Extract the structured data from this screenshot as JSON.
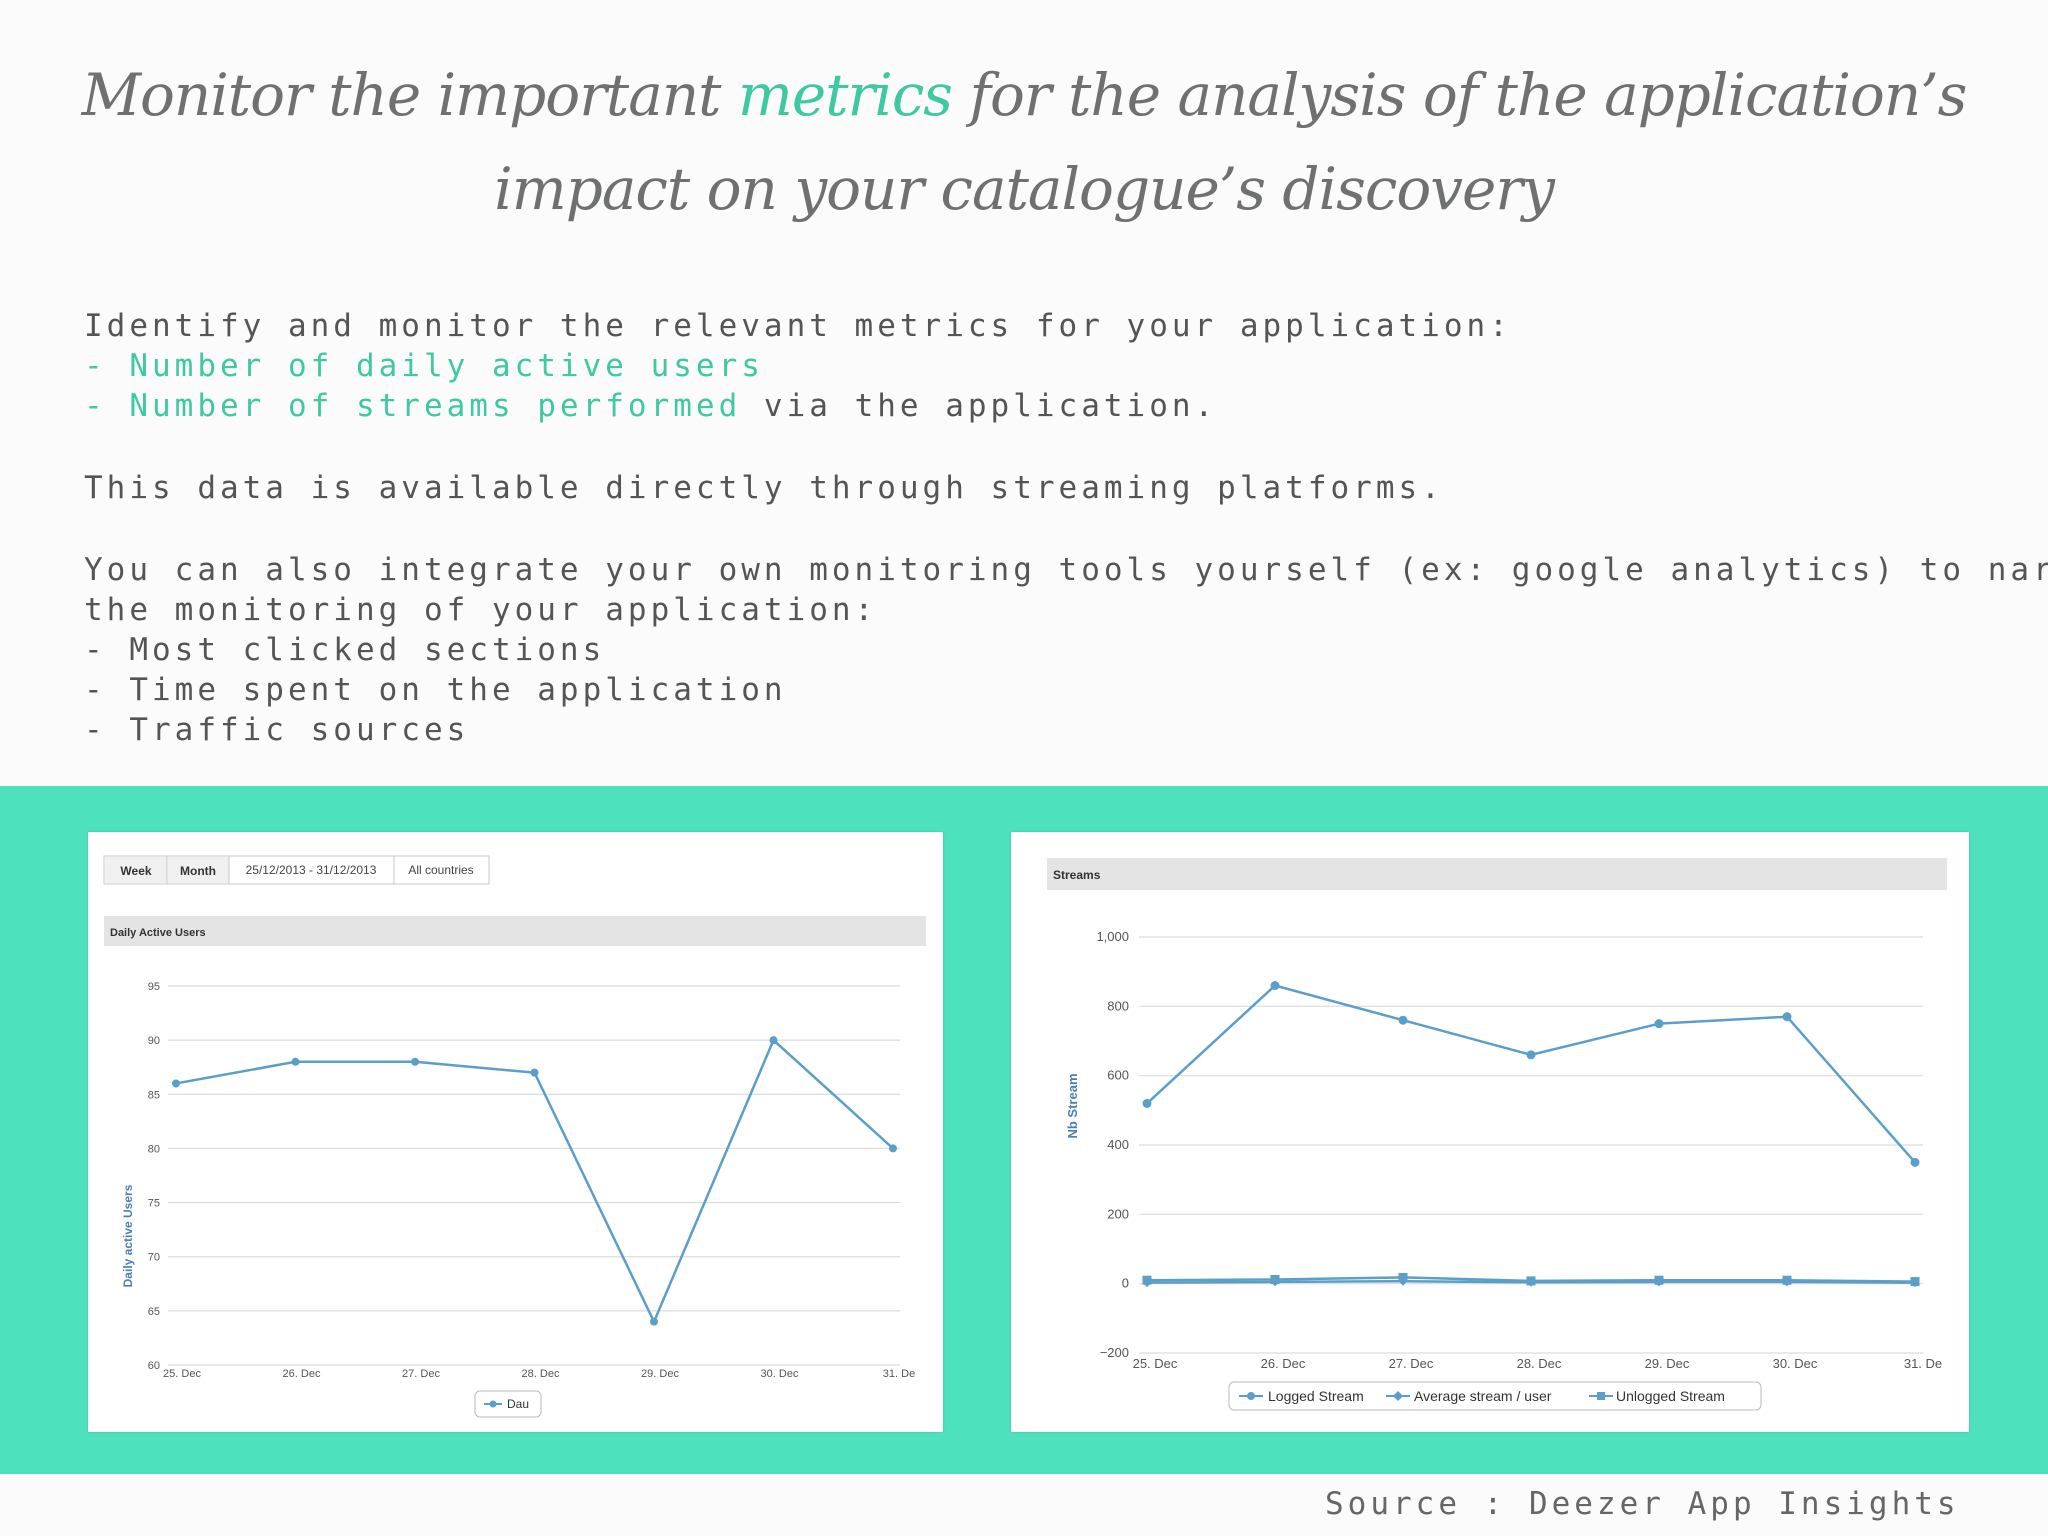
{
  "heading": {
    "before": "Monitor the important ",
    "accent": "metrics",
    "after": " for the analysis of the application’s impact on your catalogue’s discovery"
  },
  "body": {
    "intro": "Identify and monitor the relevant metrics for your application:",
    "metric1": "- Number of daily active users",
    "metric2": "- Number of streams performed",
    "metric2_suffix": " via the application.",
    "availability": "This data is available directly through streaming platforms.",
    "integrate_line1": "You can also integrate your own monitoring tools yourself (ex: google analytics) to narrow",
    "integrate_line2": "the monitoring of your application:",
    "item1": "- Most clicked sections",
    "item2": "- Time spent on the application",
    "item3": "- Traffic sources"
  },
  "source": "Source : Deezer App Insights",
  "colors": {
    "accent": "#3ec9a1",
    "band": "#4ee1be",
    "series": "#5b9ec9"
  },
  "toolbar": {
    "week": "Week",
    "month": "Month",
    "date_range": "25/12/2013 - 31/12/2013",
    "region": "All countries"
  },
  "chart_data": [
    {
      "type": "line",
      "title": "Daily Active Users",
      "ylabel": "Daily active Users",
      "xlabel": "",
      "categories": [
        "25. Dec",
        "26. Dec",
        "27. Dec",
        "28. Dec",
        "29. Dec",
        "30. Dec",
        "31. De"
      ],
      "yticks": [
        60,
        65,
        70,
        75,
        80,
        85,
        90,
        95
      ],
      "ylim": [
        60,
        95
      ],
      "series": [
        {
          "name": "Dau",
          "values": [
            86,
            88,
            88,
            87,
            64,
            90,
            80
          ]
        }
      ],
      "legend": "bottom",
      "grid": true
    },
    {
      "type": "line",
      "title": "Streams",
      "ylabel": "Nb Stream",
      "xlabel": "",
      "categories": [
        "25. Dec",
        "26. Dec",
        "27. Dec",
        "28. Dec",
        "29. Dec",
        "30. Dec",
        "31. De"
      ],
      "yticks": [
        -200,
        0,
        200,
        400,
        600,
        800,
        1000
      ],
      "yticklabels": [
        "−200",
        "0",
        "200",
        "400",
        "600",
        "800",
        "1,000"
      ],
      "ylim": [
        -200,
        1000
      ],
      "series": [
        {
          "name": "Logged Stream",
          "values": [
            520,
            860,
            760,
            660,
            750,
            770,
            350
          ]
        },
        {
          "name": "Average stream / user",
          "values": [
            3,
            5,
            7,
            4,
            5,
            5,
            3
          ]
        },
        {
          "name": "Unlogged Stream",
          "values": [
            10,
            12,
            18,
            8,
            10,
            10,
            6
          ]
        }
      ],
      "legend": "bottom",
      "grid": true
    }
  ]
}
